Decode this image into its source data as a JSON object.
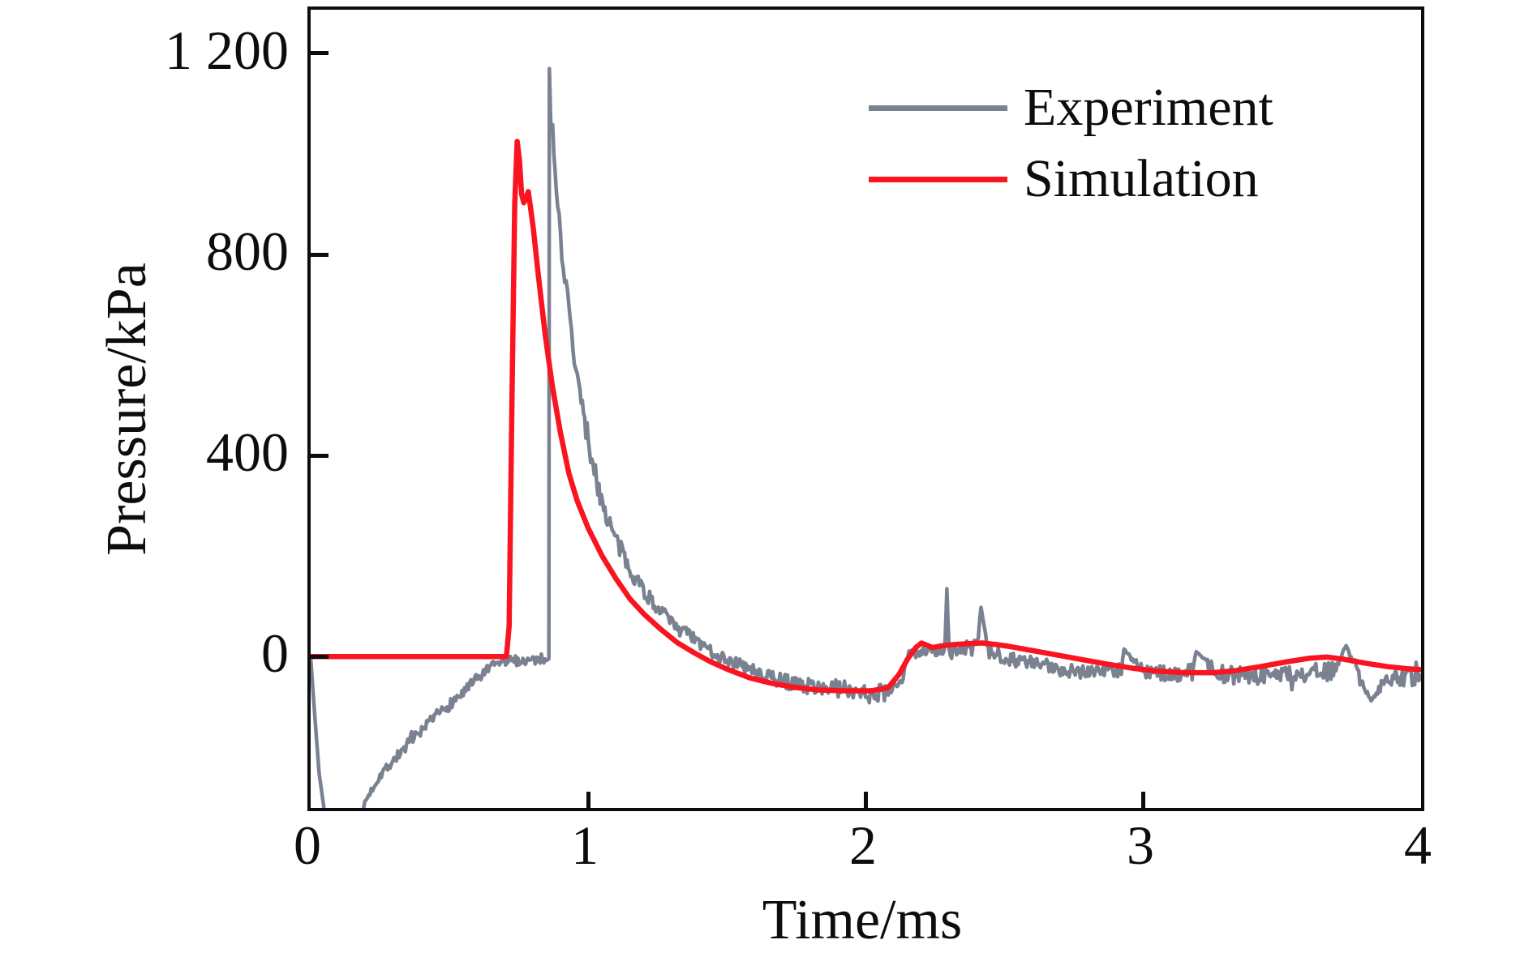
{
  "figure": {
    "background": "#ffffff",
    "axis_color": "#0d0d0d"
  },
  "legend": {
    "items": [
      {
        "label": "Experiment",
        "color": "#7a8190"
      },
      {
        "label": "Simulation",
        "color": "#fa1420"
      }
    ]
  },
  "axes": {
    "x": {
      "title": "Time/ms",
      "ticks": [
        {
          "value": 0,
          "label": "0"
        },
        {
          "value": 1,
          "label": "1"
        },
        {
          "value": 2,
          "label": "2"
        },
        {
          "value": 3,
          "label": "3"
        },
        {
          "value": 4,
          "label": "4"
        }
      ]
    },
    "y": {
      "title": "Pressure/kPa",
      "ticks": [
        {
          "value": 0,
          "label": "0"
        },
        {
          "value": 400,
          "label": "400"
        },
        {
          "value": 800,
          "label": "800"
        },
        {
          "value": 1200,
          "label": "1 200"
        }
      ]
    }
  },
  "chart_data": {
    "type": "line",
    "title": "",
    "xlabel": "Time/ms",
    "ylabel": "Pressure/kPa",
    "xlim": [
      0,
      4
    ],
    "ylim": [
      -301,
      1287
    ],
    "grid": false,
    "legend_position": "upper right (inside plot)",
    "series": [
      {
        "name": "Experiment",
        "color": "#7a8190",
        "style": "noisy",
        "stroke_width": 4.5,
        "noise_seed": 7,
        "points_format": "[time_ms, pressure_kPa, noise_amplitude_kPa]",
        "points": [
          [
            0.0,
            0,
            0
          ],
          [
            0.01,
            -80,
            0
          ],
          [
            0.03,
            -230,
            0
          ],
          [
            0.05,
            -310,
            0
          ],
          [
            0.185,
            -310,
            0
          ],
          [
            0.2,
            -285,
            8
          ],
          [
            0.25,
            -235,
            10
          ],
          [
            0.3,
            -205,
            11
          ],
          [
            0.35,
            -175,
            12
          ],
          [
            0.4,
            -150,
            12
          ],
          [
            0.45,
            -120,
            12
          ],
          [
            0.5,
            -95,
            12
          ],
          [
            0.55,
            -72,
            12
          ],
          [
            0.6,
            -45,
            12
          ],
          [
            0.64,
            -25,
            10
          ],
          [
            0.68,
            -12,
            10
          ],
          [
            0.72,
            -8,
            10
          ],
          [
            0.76,
            -8,
            10
          ],
          [
            0.8,
            -6,
            10
          ],
          [
            0.84,
            -4,
            10
          ],
          [
            0.858,
            -2,
            4
          ],
          [
            0.86,
            1170,
            0
          ],
          [
            0.865,
            1062,
            0
          ],
          [
            0.872,
            1045,
            15
          ],
          [
            0.88,
            960,
            25
          ],
          [
            0.89,
            890,
            25
          ],
          [
            0.9,
            840,
            25
          ],
          [
            0.915,
            755,
            25
          ],
          [
            0.93,
            690,
            25
          ],
          [
            0.95,
            590,
            25
          ],
          [
            0.97,
            520,
            25
          ],
          [
            1.0,
            430,
            25
          ],
          [
            1.03,
            350,
            22
          ],
          [
            1.06,
            290,
            20
          ],
          [
            1.1,
            230,
            20
          ],
          [
            1.14,
            185,
            18
          ],
          [
            1.18,
            150,
            18
          ],
          [
            1.23,
            108,
            16
          ],
          [
            1.28,
            78,
            15
          ],
          [
            1.33,
            55,
            15
          ],
          [
            1.4,
            25,
            14
          ],
          [
            1.47,
            3,
            14
          ],
          [
            1.55,
            -18,
            14
          ],
          [
            1.62,
            -35,
            14
          ],
          [
            1.7,
            -48,
            15
          ],
          [
            1.78,
            -58,
            15
          ],
          [
            1.86,
            -62,
            16
          ],
          [
            1.95,
            -65,
            18
          ],
          [
            2.03,
            -70,
            18
          ],
          [
            2.09,
            -75,
            15
          ],
          [
            2.13,
            -45,
            10
          ],
          [
            2.155,
            5,
            8
          ],
          [
            2.18,
            8,
            10
          ],
          [
            2.22,
            14,
            12
          ],
          [
            2.26,
            14,
            15
          ],
          [
            2.285,
            15,
            12
          ],
          [
            2.292,
            135,
            0
          ],
          [
            2.3,
            5,
            12
          ],
          [
            2.34,
            16,
            15
          ],
          [
            2.4,
            18,
            15
          ],
          [
            2.415,
            98,
            0
          ],
          [
            2.44,
            10,
            15
          ],
          [
            2.5,
            0,
            15
          ],
          [
            2.58,
            -12,
            15
          ],
          [
            2.66,
            -20,
            15
          ],
          [
            2.75,
            -28,
            15
          ],
          [
            2.85,
            -28,
            15
          ],
          [
            2.92,
            -25,
            15
          ],
          [
            2.93,
            15,
            0
          ],
          [
            3.0,
            -30,
            15
          ],
          [
            3.1,
            -35,
            15
          ],
          [
            3.18,
            -28,
            18
          ],
          [
            3.19,
            10,
            0
          ],
          [
            3.28,
            -35,
            18
          ],
          [
            3.38,
            -40,
            18
          ],
          [
            3.48,
            -35,
            18
          ],
          [
            3.58,
            -32,
            18
          ],
          [
            3.68,
            -30,
            18
          ],
          [
            3.73,
            22,
            0
          ],
          [
            3.78,
            -40,
            18
          ],
          [
            3.82,
            -88,
            0
          ],
          [
            3.88,
            -38,
            18
          ],
          [
            3.95,
            -42,
            18
          ],
          [
            4.0,
            -48,
            14
          ]
        ]
      },
      {
        "name": "Simulation",
        "color": "#fa1420",
        "style": "smooth",
        "stroke_width": 6.5,
        "points_format": "[time_ms, pressure_kPa]",
        "points": [
          [
            0.0,
            0
          ],
          [
            0.705,
            0
          ],
          [
            0.715,
            60
          ],
          [
            0.725,
            500
          ],
          [
            0.735,
            900
          ],
          [
            0.744,
            1025
          ],
          [
            0.752,
            988
          ],
          [
            0.76,
            920
          ],
          [
            0.768,
            903
          ],
          [
            0.776,
            913
          ],
          [
            0.784,
            925
          ],
          [
            0.792,
            893
          ],
          [
            0.802,
            852
          ],
          [
            0.82,
            760
          ],
          [
            0.845,
            640
          ],
          [
            0.87,
            540
          ],
          [
            0.9,
            445
          ],
          [
            0.93,
            365
          ],
          [
            0.96,
            310
          ],
          [
            1.0,
            255
          ],
          [
            1.05,
            200
          ],
          [
            1.1,
            155
          ],
          [
            1.15,
            115
          ],
          [
            1.2,
            85
          ],
          [
            1.26,
            55
          ],
          [
            1.32,
            28
          ],
          [
            1.38,
            8
          ],
          [
            1.44,
            -10
          ],
          [
            1.5,
            -25
          ],
          [
            1.58,
            -42
          ],
          [
            1.66,
            -53
          ],
          [
            1.74,
            -61
          ],
          [
            1.82,
            -66
          ],
          [
            1.92,
            -68
          ],
          [
            2.02,
            -68
          ],
          [
            2.08,
            -62
          ],
          [
            2.12,
            -35
          ],
          [
            2.15,
            -5
          ],
          [
            2.18,
            18
          ],
          [
            2.2,
            27
          ],
          [
            2.24,
            18
          ],
          [
            2.28,
            22
          ],
          [
            2.32,
            24
          ],
          [
            2.37,
            26
          ],
          [
            2.42,
            27
          ],
          [
            2.47,
            24
          ],
          [
            2.52,
            20
          ],
          [
            2.57,
            15
          ],
          [
            2.64,
            8
          ],
          [
            2.72,
            0
          ],
          [
            2.8,
            -8
          ],
          [
            2.88,
            -16
          ],
          [
            2.96,
            -23
          ],
          [
            3.05,
            -29
          ],
          [
            3.15,
            -32
          ],
          [
            3.25,
            -32
          ],
          [
            3.33,
            -28
          ],
          [
            3.42,
            -20
          ],
          [
            3.52,
            -10
          ],
          [
            3.6,
            -3
          ],
          [
            3.66,
            -1
          ],
          [
            3.72,
            -5
          ],
          [
            3.8,
            -13
          ],
          [
            3.88,
            -20
          ],
          [
            3.95,
            -24
          ],
          [
            4.0,
            -26
          ]
        ]
      }
    ]
  }
}
